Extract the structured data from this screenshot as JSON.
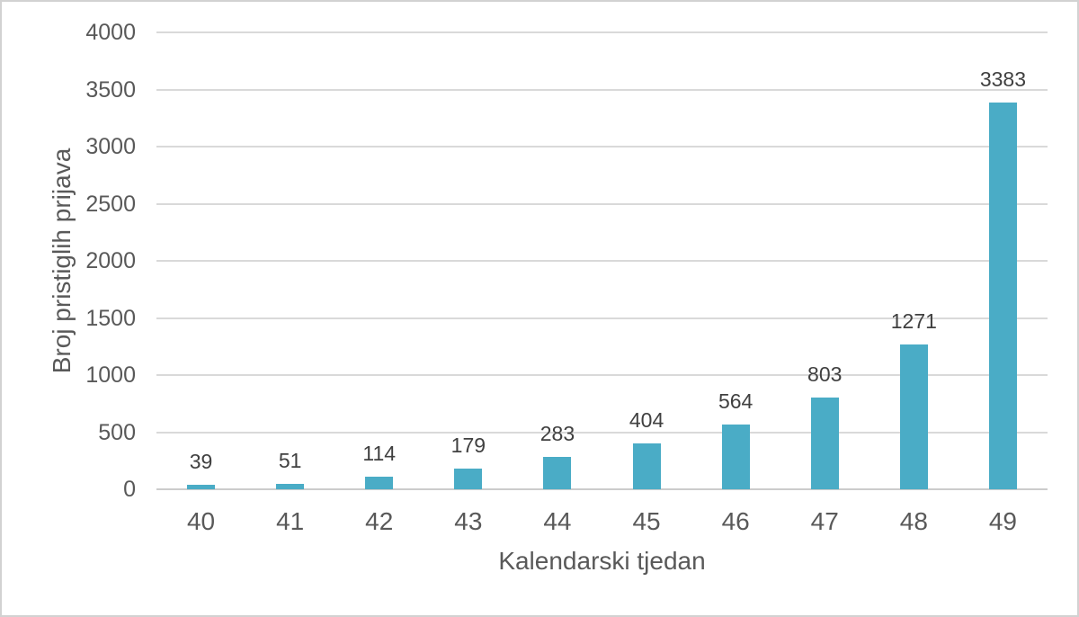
{
  "chart_data": {
    "type": "bar",
    "title": "",
    "categories": [
      "40",
      "41",
      "42",
      "43",
      "44",
      "45",
      "46",
      "47",
      "48",
      "49"
    ],
    "values": [
      39,
      51,
      114,
      179,
      283,
      404,
      564,
      803,
      1271,
      3383
    ],
    "data_labels": [
      "39",
      "51",
      "114",
      "179",
      "283",
      "404",
      "564",
      "803",
      "1271",
      "3383"
    ],
    "xlabel": "Kalendarski tjedan",
    "ylabel": "Broj pristiglih prijava",
    "ylim": [
      0,
      4000
    ],
    "ytick_step": 500,
    "yticks": [
      0,
      500,
      1000,
      1500,
      2000,
      2500,
      3000,
      3500,
      4000
    ],
    "grid": true,
    "legend_position": "none",
    "data_labels_shown": true,
    "colors": {
      "bar": "#4aacc6",
      "gridline": "#d9d9d9",
      "axis_line": "#cccccc",
      "tick_label": "#595959",
      "data_label": "#404040",
      "axis_title": "#595959",
      "frame_border": "#d2d2d2",
      "background": "#ffffff"
    }
  }
}
